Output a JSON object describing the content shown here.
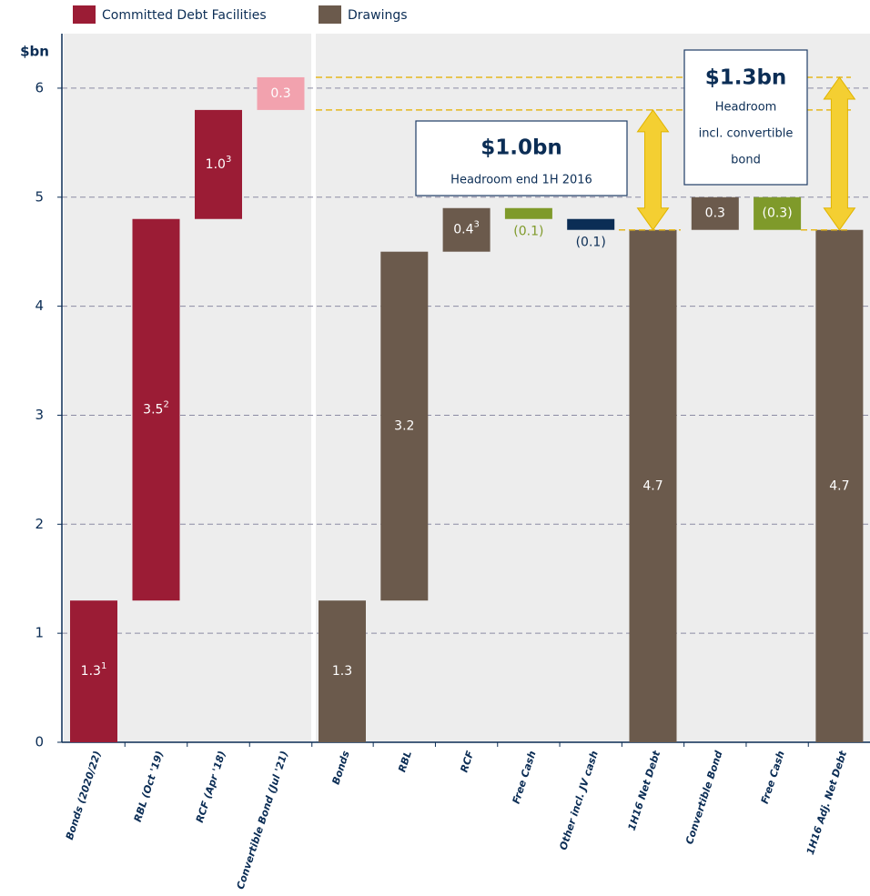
{
  "chart_data": {
    "type": "waterfall",
    "ylabel": "$bn",
    "ylim": [
      0,
      6.5
    ],
    "yticks": [
      0,
      1,
      2,
      3,
      4,
      5,
      6
    ],
    "grid": true,
    "panels": [
      {
        "name": "Committed Debt Facilities",
        "color": "#9b1c35",
        "categories": [
          "Bonds (2020/22)",
          "RBL (Oct '19)",
          "RCF (Apr '18)",
          "Convertible Bond (Jul '21)"
        ],
        "values": [
          1.3,
          3.5,
          1.0,
          0.3
        ],
        "value_labels": [
          "1.3",
          "3.5",
          "1.0",
          "0.3"
        ],
        "notes": [
          "1",
          "2",
          "3",
          null
        ],
        "colors": [
          "#9b1c35",
          "#9b1c35",
          "#9b1c35",
          "#f2a2ae"
        ],
        "label_colors": [
          "#ffffff",
          "#ffffff",
          "#ffffff",
          "#ffffff"
        ],
        "totals": [
          false,
          false,
          false,
          false
        ]
      },
      {
        "name": "Drawings",
        "color": "#6b5a4c",
        "categories": [
          "Bonds",
          "RBL",
          "RCF",
          "Free Cash",
          "Other incl. JV cash",
          "1H16 Net Debt",
          "Convertible Bond",
          "Free Cash",
          "1H16 Adj. Net Debt"
        ],
        "values": [
          1.3,
          3.2,
          0.4,
          -0.1,
          -0.1,
          4.7,
          0.3,
          -0.3,
          4.7
        ],
        "value_labels": [
          "1.3",
          "3.2",
          "0.4",
          "(0.1)",
          "(0.1)",
          "4.7",
          "0.3",
          "(0.3)",
          "4.7"
        ],
        "notes": [
          null,
          null,
          "3",
          null,
          null,
          null,
          null,
          null,
          null
        ],
        "colors": [
          "#6b5a4c",
          "#6b5a4c",
          "#6b5a4c",
          "#7f9a2a",
          "#0b2d55",
          "#6b5a4c",
          "#6b5a4c",
          "#7f9a2a",
          "#6b5a4c"
        ],
        "label_colors": [
          "#ffffff",
          "#ffffff",
          "#ffffff",
          "#7f9a2a",
          "#0b2d55",
          "#ffffff",
          "#ffffff",
          "#ffffff",
          "#ffffff"
        ],
        "totals": [
          false,
          false,
          false,
          false,
          false,
          true,
          false,
          false,
          true
        ]
      }
    ],
    "annotations": [
      {
        "title": "$1.0bn",
        "lines": [
          "Headroom end 1H 2016"
        ]
      },
      {
        "title": "$1.3bn",
        "lines": [
          "Headroom",
          "incl. convertible",
          "bond"
        ]
      }
    ]
  }
}
